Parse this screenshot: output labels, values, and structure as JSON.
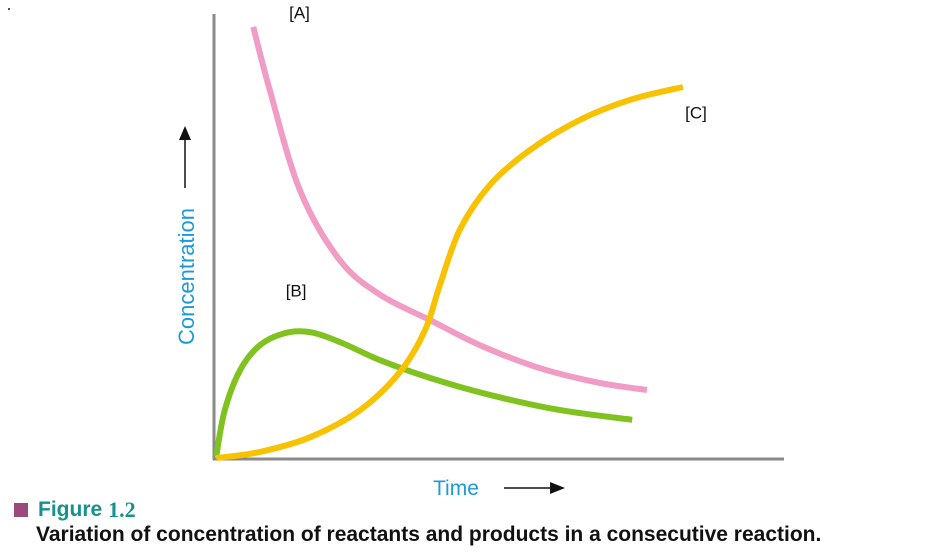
{
  "chart_data": {
    "type": "line",
    "title": "",
    "xlabel": "Time",
    "ylabel": "Concentration",
    "xlim": [
      0,
      100
    ],
    "ylim": [
      0,
      100
    ],
    "grid": false,
    "ticks": "none",
    "series": [
      {
        "name": "[A]",
        "label": "[A]",
        "color": "#f09cc4",
        "points": [
          [
            6.9,
            97.1
          ],
          [
            9.8,
            82.9
          ],
          [
            15.1,
            60.4
          ],
          [
            22.1,
            44.7
          ],
          [
            29.2,
            36.9
          ],
          [
            38.0,
            31.2
          ],
          [
            46.7,
            25.6
          ],
          [
            57.3,
            20.4
          ],
          [
            67.8,
            17.1
          ],
          [
            76.1,
            15.5
          ]
        ],
        "label_at": [
          13.2,
          99.0
        ]
      },
      {
        "name": "[B]",
        "label": "[B]",
        "color": "#80c21f",
        "points": [
          [
            0.4,
            0.7
          ],
          [
            1.9,
            11.0
          ],
          [
            4.6,
            20.0
          ],
          [
            8.1,
            25.6
          ],
          [
            12.5,
            28.3
          ],
          [
            16.9,
            28.5
          ],
          [
            22.1,
            26.3
          ],
          [
            29.2,
            22.2
          ],
          [
            38.0,
            18.2
          ],
          [
            48.5,
            14.4
          ],
          [
            60.8,
            11.0
          ],
          [
            73.5,
            8.8
          ]
        ],
        "label_at": [
          12.6,
          36.5
        ]
      },
      {
        "name": "[C]",
        "label": "[C]",
        "color": "#f8c200",
        "points": [
          [
            0.4,
            0.2
          ],
          [
            8.1,
            1.6
          ],
          [
            16.9,
            4.9
          ],
          [
            25.7,
            11.0
          ],
          [
            32.7,
            19.6
          ],
          [
            37.1,
            29.0
          ],
          [
            39.7,
            39.1
          ],
          [
            43.2,
            51.5
          ],
          [
            48.5,
            61.6
          ],
          [
            55.5,
            69.4
          ],
          [
            64.3,
            76.2
          ],
          [
            73.1,
            80.7
          ],
          [
            82.4,
            83.6
          ]
        ],
        "label_at": [
          82.8,
          76.5
        ]
      }
    ],
    "annotations": [
      "[A]",
      "[B]",
      "[C]"
    ]
  },
  "colors": {
    "axis": "#8a8a8a",
    "axis_label": "#1a9ad6",
    "arrow": "#111111",
    "figure_accent": "#16918f",
    "figure_marker": "#9c4a7e"
  },
  "caption": {
    "figure_word": "Figure",
    "figure_number": "1.2",
    "description": "Variation of concentration of reactants and products in a consecutive reaction."
  }
}
